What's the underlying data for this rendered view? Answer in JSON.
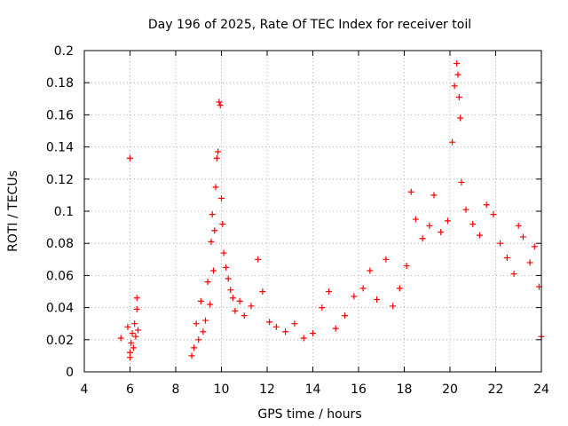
{
  "chart_data": {
    "type": "scatter",
    "title": "Day 196 of 2025, Rate Of TEC Index for receiver toil",
    "xlabel": "GPS time / hours",
    "ylabel": "ROTI / TECUs",
    "xlim": [
      4,
      24
    ],
    "ylim": [
      0,
      0.2
    ],
    "x_ticks": [
      {
        "value": 4,
        "label": "4"
      },
      {
        "value": 6,
        "label": "6"
      },
      {
        "value": 8,
        "label": "8"
      },
      {
        "value": 10,
        "label": "10"
      },
      {
        "value": 12,
        "label": "12"
      },
      {
        "value": 14,
        "label": "14"
      },
      {
        "value": 16,
        "label": "16"
      },
      {
        "value": 18,
        "label": "18"
      },
      {
        "value": 20,
        "label": "20"
      },
      {
        "value": 22,
        "label": "22"
      },
      {
        "value": 24,
        "label": "24"
      }
    ],
    "y_ticks": [
      {
        "value": 0,
        "label": "0"
      },
      {
        "value": 0.02,
        "label": "0.02"
      },
      {
        "value": 0.04,
        "label": "0.04"
      },
      {
        "value": 0.06,
        "label": "0.06"
      },
      {
        "value": 0.08,
        "label": "0.08"
      },
      {
        "value": 0.1,
        "label": "0.1"
      },
      {
        "value": 0.12,
        "label": "0.12"
      },
      {
        "value": 0.14,
        "label": "0.14"
      },
      {
        "value": 0.16,
        "label": "0.16"
      },
      {
        "value": 0.18,
        "label": "0.18"
      },
      {
        "value": 0.2,
        "label": "0.2"
      }
    ],
    "grid": true,
    "marker": "+",
    "color": "#ff0000",
    "series": [
      {
        "name": "ROTI",
        "points": [
          [
            5.6,
            0.021
          ],
          [
            6.0,
            0.133
          ],
          [
            5.9,
            0.028
          ],
          [
            6.0,
            0.012
          ],
          [
            6.05,
            0.018
          ],
          [
            6.1,
            0.024
          ],
          [
            6.15,
            0.015
          ],
          [
            6.2,
            0.03
          ],
          [
            6.25,
            0.022
          ],
          [
            6.3,
            0.046
          ],
          [
            6.3,
            0.039
          ],
          [
            6.35,
            0.026
          ],
          [
            6.0,
            0.009
          ],
          [
            8.7,
            0.01
          ],
          [
            8.8,
            0.015
          ],
          [
            8.9,
            0.03
          ],
          [
            9.0,
            0.02
          ],
          [
            9.1,
            0.044
          ],
          [
            9.2,
            0.025
          ],
          [
            9.3,
            0.032
          ],
          [
            9.4,
            0.056
          ],
          [
            9.5,
            0.042
          ],
          [
            9.55,
            0.081
          ],
          [
            9.6,
            0.098
          ],
          [
            9.65,
            0.063
          ],
          [
            9.7,
            0.088
          ],
          [
            9.75,
            0.115
          ],
          [
            9.8,
            0.133
          ],
          [
            9.85,
            0.137
          ],
          [
            9.9,
            0.168
          ],
          [
            9.95,
            0.166
          ],
          [
            10.0,
            0.108
          ],
          [
            10.05,
            0.092
          ],
          [
            10.1,
            0.074
          ],
          [
            10.2,
            0.065
          ],
          [
            10.3,
            0.058
          ],
          [
            10.4,
            0.051
          ],
          [
            10.5,
            0.046
          ],
          [
            10.6,
            0.038
          ],
          [
            10.8,
            0.044
          ],
          [
            11.0,
            0.035
          ],
          [
            11.3,
            0.041
          ],
          [
            11.6,
            0.07
          ],
          [
            11.8,
            0.05
          ],
          [
            12.1,
            0.031
          ],
          [
            12.4,
            0.028
          ],
          [
            12.8,
            0.025
          ],
          [
            13.2,
            0.03
          ],
          [
            13.6,
            0.021
          ],
          [
            14.0,
            0.024
          ],
          [
            14.4,
            0.04
          ],
          [
            14.7,
            0.05
          ],
          [
            15.0,
            0.027
          ],
          [
            15.4,
            0.035
          ],
          [
            15.8,
            0.047
          ],
          [
            16.2,
            0.052
          ],
          [
            16.5,
            0.063
          ],
          [
            16.8,
            0.045
          ],
          [
            17.2,
            0.07
          ],
          [
            17.5,
            0.041
          ],
          [
            17.8,
            0.052
          ],
          [
            18.1,
            0.066
          ],
          [
            18.3,
            0.112
          ],
          [
            18.5,
            0.095
          ],
          [
            18.8,
            0.083
          ],
          [
            19.1,
            0.091
          ],
          [
            19.3,
            0.11
          ],
          [
            19.6,
            0.087
          ],
          [
            19.9,
            0.094
          ],
          [
            20.1,
            0.143
          ],
          [
            20.2,
            0.178
          ],
          [
            20.3,
            0.192
          ],
          [
            20.35,
            0.185
          ],
          [
            20.4,
            0.171
          ],
          [
            20.45,
            0.158
          ],
          [
            20.5,
            0.118
          ],
          [
            20.7,
            0.101
          ],
          [
            21.0,
            0.092
          ],
          [
            21.3,
            0.085
          ],
          [
            21.6,
            0.104
          ],
          [
            21.9,
            0.098
          ],
          [
            22.2,
            0.08
          ],
          [
            22.5,
            0.071
          ],
          [
            22.8,
            0.061
          ],
          [
            23.0,
            0.091
          ],
          [
            23.2,
            0.084
          ],
          [
            23.5,
            0.068
          ],
          [
            23.7,
            0.078
          ],
          [
            23.9,
            0.053
          ],
          [
            24.0,
            0.022
          ]
        ]
      }
    ]
  }
}
